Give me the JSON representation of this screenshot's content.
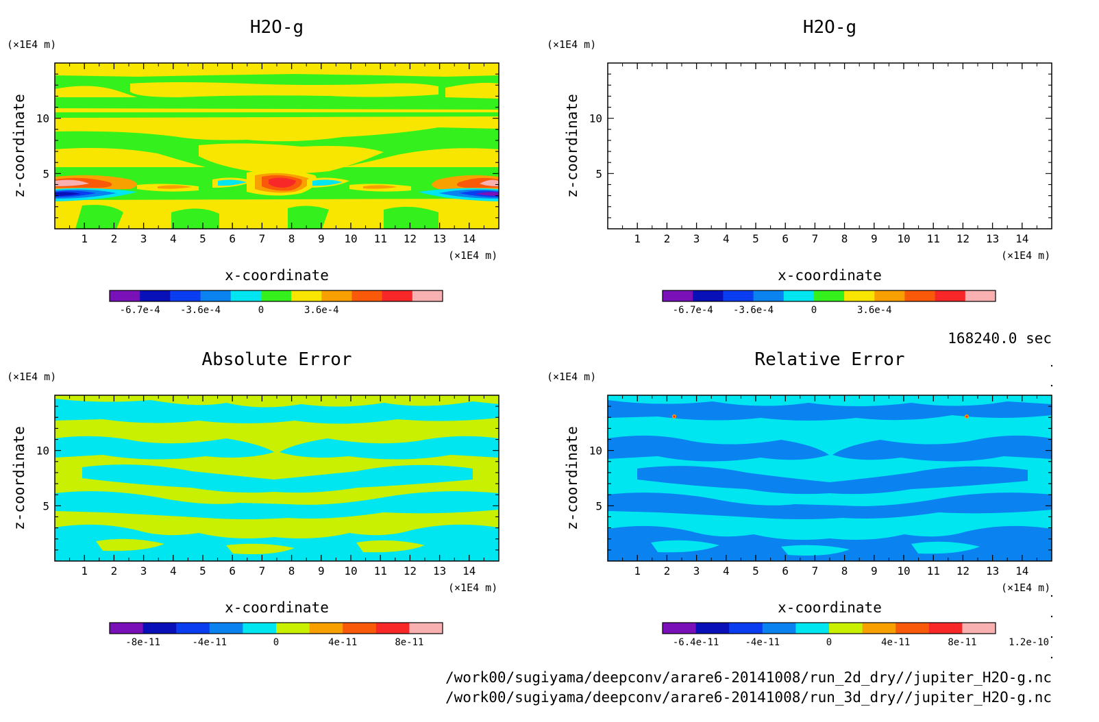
{
  "chart_data": [
    {
      "type": "heatmap",
      "title": "H2O-g",
      "xlabel": "x-coordinate",
      "ylabel": "z-coordinate",
      "x_unit": "(×1E4 m)",
      "y_unit": "(×1E4 m)",
      "xlim": [
        0,
        15
      ],
      "ylim": [
        0,
        15
      ],
      "x_ticks": [
        "1",
        "2",
        "3",
        "4",
        "5",
        "6",
        "7",
        "8",
        "9",
        "10",
        "11",
        "12",
        "13",
        "14"
      ],
      "y_ticks": [
        "5",
        "10"
      ],
      "colorbar": {
        "colors": [
          "#7a10b8",
          "#0a10b8",
          "#0a3cf0",
          "#0a82f0",
          "#00e6f0",
          "#34f01c",
          "#f8e600",
          "#f8a000",
          "#f85a0a",
          "#f82828",
          "#f8b0b0"
        ],
        "tick_labels": [
          "-6.7e-4",
          "-3.6e-4",
          "0",
          "3.6e-4"
        ]
      },
      "dominant_levels": [
        "green",
        "yellow"
      ],
      "features": "horizontal banded structure with a strong anomaly band at z≈3–5: red/orange maxima near x≈7.5 and x≈0,15, blue/purple minima near x≈0 and x≈15"
    },
    {
      "type": "heatmap",
      "title": "H2O-g",
      "xlabel": "x-coordinate",
      "ylabel": "z-coordinate",
      "x_unit": "(×1E4 m)",
      "y_unit": "(×1E4 m)",
      "xlim": [
        0,
        15
      ],
      "ylim": [
        0,
        15
      ],
      "x_ticks": [
        "1",
        "2",
        "3",
        "4",
        "5",
        "6",
        "7",
        "8",
        "9",
        "10",
        "11",
        "12",
        "13",
        "14"
      ],
      "y_ticks": [
        "5",
        "10"
      ],
      "colorbar": {
        "colors": [
          "#7a10b8",
          "#0a10b8",
          "#0a3cf0",
          "#0a82f0",
          "#00e6f0",
          "#34f01c",
          "#f8e600",
          "#f8a000",
          "#f85a0a",
          "#f82828",
          "#f8b0b0"
        ],
        "tick_labels": [
          "-6.7e-4",
          "-3.6e-4",
          "0",
          "3.6e-4"
        ]
      },
      "dominant_levels": [
        "green",
        "yellow"
      ]
    },
    {
      "type": "heatmap",
      "title": "Absolute Error",
      "xlabel": "x-coordinate",
      "ylabel": "z-coordinate",
      "x_unit": "(×1E4 m)",
      "y_unit": "(×1E4 m)",
      "xlim": [
        0,
        15
      ],
      "ylim": [
        0,
        15
      ],
      "x_ticks": [
        "1",
        "2",
        "3",
        "4",
        "5",
        "6",
        "7",
        "8",
        "9",
        "10",
        "11",
        "12",
        "13",
        "14"
      ],
      "y_ticks": [
        "5",
        "10"
      ],
      "colorbar": {
        "colors": [
          "#7a10b8",
          "#0a10b8",
          "#0a3cf0",
          "#0a82f0",
          "#00e6f0",
          "#c8f000",
          "#f8a000",
          "#f85a0a",
          "#f82828",
          "#f8b0b0"
        ],
        "tick_labels": [
          "-8e-11",
          "-4e-11",
          "0",
          "4e-11",
          "8e-11"
        ]
      },
      "dominant_levels": [
        "cyan",
        "yellow-green"
      ]
    },
    {
      "type": "heatmap",
      "title": "Relative Error",
      "xlabel": "x-coordinate",
      "ylabel": "z-coordinate",
      "x_unit": "(×1E4 m)",
      "y_unit": "(×1E4 m)",
      "xlim": [
        0,
        15
      ],
      "ylim": [
        0,
        15
      ],
      "x_ticks": [
        "1",
        "2",
        "3",
        "4",
        "5",
        "6",
        "7",
        "8",
        "9",
        "10",
        "11",
        "12",
        "13",
        "14"
      ],
      "y_ticks": [
        "5",
        "10"
      ],
      "colorbar": {
        "colors": [
          "#7a10b8",
          "#0a10b8",
          "#0a3cf0",
          "#0a82f0",
          "#00e6f0",
          "#c8f000",
          "#f8a000",
          "#f85a0a",
          "#f82828",
          "#f8b0b0"
        ],
        "tick_labels": [
          "-6.4e-11",
          "-4e-11",
          "0",
          "4e-11",
          "8e-11",
          "1.2e-10"
        ]
      },
      "dominant_levels": [
        "blue",
        "cyan"
      ]
    }
  ],
  "time_label": "168240.0 sec",
  "files": [
    "/work00/sugiyama/deepconv/arare6-20141008/run_2d_dry//jupiter_H2O-g.nc",
    "/work00/sugiyama/deepconv/arare6-20141008/run_3d_dry//jupiter_H2O-g.nc"
  ],
  "colors": {
    "green": "#34f01c",
    "yellow": "#f8e600",
    "cyan": "#00e6f0",
    "yellowgreen": "#c8f000",
    "blue": "#0a82f0",
    "orange": "#f8a000",
    "redorange": "#f85a0a",
    "red": "#f82828",
    "pink": "#f8b0b0",
    "lightblue": "#30c0f0",
    "darkblue": "#0a10b8",
    "purple": "#7a10b8",
    "medblue": "#0a3cf0"
  }
}
